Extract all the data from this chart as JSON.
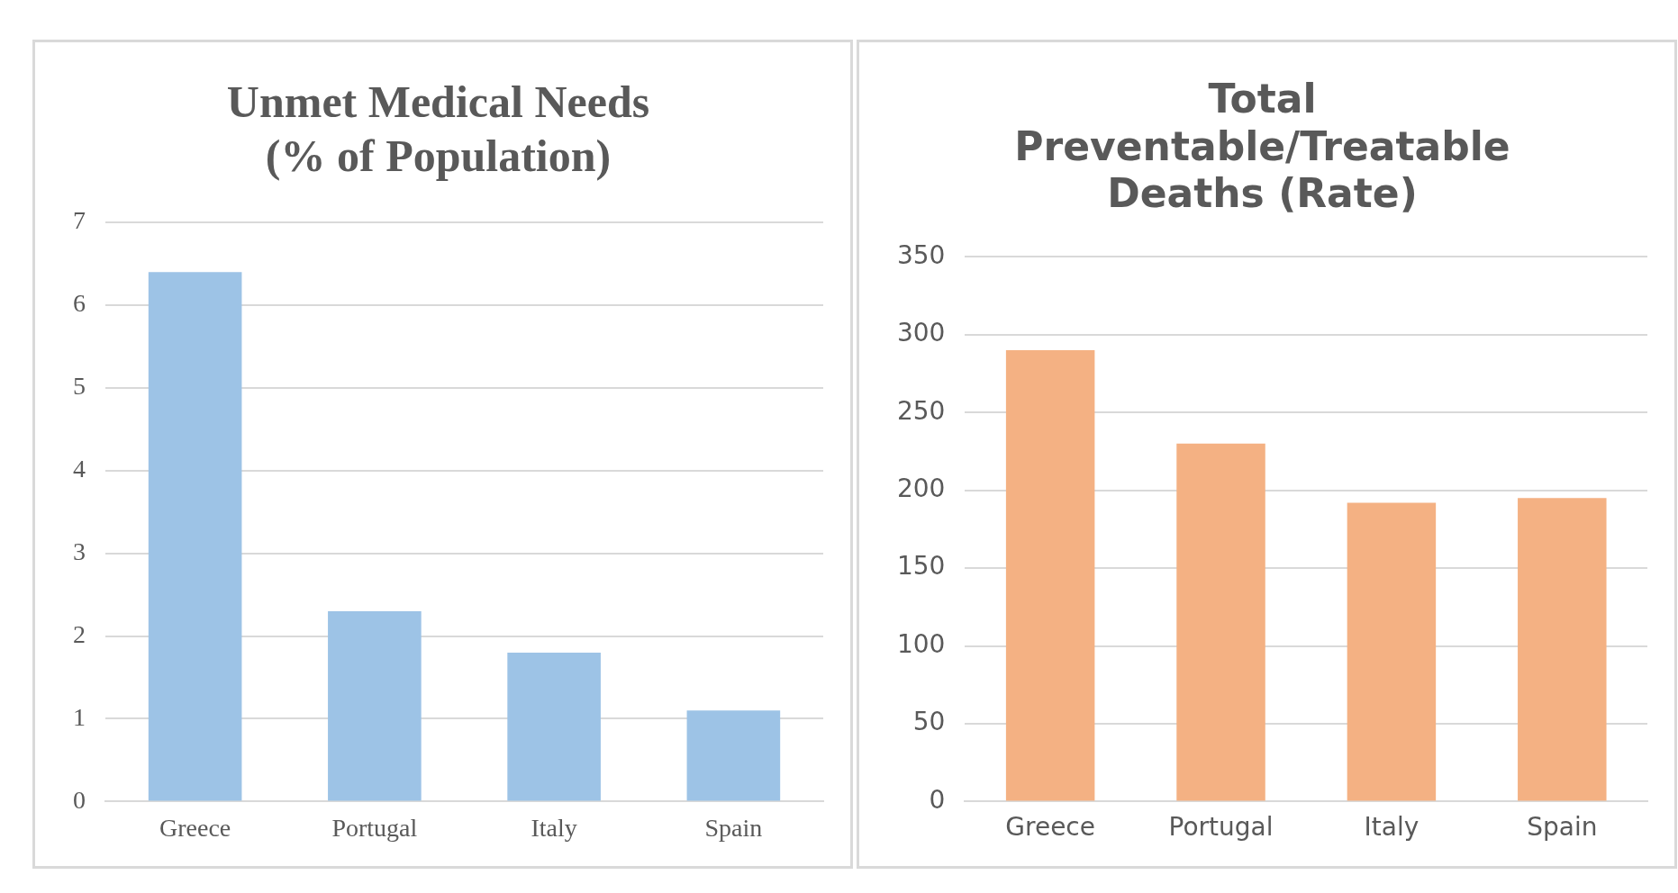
{
  "chart_data": [
    {
      "type": "bar",
      "title": "Unmet Medical Needs\n(% of Population)",
      "categories": [
        "Greece",
        "Portugal",
        "Italy",
        "Spain"
      ],
      "values": [
        6.4,
        2.3,
        1.8,
        1.1
      ],
      "color": "#9dc3e6",
      "ylim": [
        0,
        7
      ],
      "yticks": [
        0,
        1,
        2,
        3,
        4,
        5,
        6,
        7
      ],
      "grid": "y",
      "legend": false
    },
    {
      "type": "bar",
      "title": "Total\nPreventable/Treatable\nDeaths (Rate)",
      "categories": [
        "Greece",
        "Portugal",
        "Italy",
        "Spain"
      ],
      "values": [
        290,
        230,
        192,
        195
      ],
      "color": "#f4b183",
      "ylim": [
        0,
        350
      ],
      "yticks": [
        0,
        50,
        100,
        150,
        200,
        250,
        300,
        350
      ],
      "grid": "y",
      "legend": false
    }
  ]
}
